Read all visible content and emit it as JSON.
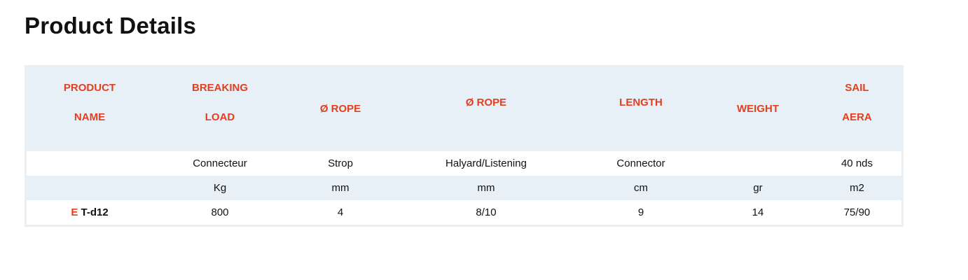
{
  "page_title": "Product Details",
  "table": {
    "headers": [
      [
        "PRODUCT",
        "NAME"
      ],
      [
        "BREAKING",
        "LOAD"
      ],
      [
        "Ø ROPE"
      ],
      [
        "Ø ROPE"
      ],
      [
        "LENGTH"
      ],
      [
        "WEIGHT"
      ],
      [
        "SAIL",
        "AERA"
      ]
    ],
    "rows": [
      [
        "",
        "Connecteur",
        "Strop",
        "Halyard/Listening",
        "Connector",
        "",
        "40 nds"
      ],
      [
        "",
        "Kg",
        "mm",
        "mm",
        "cm",
        "gr",
        "m2"
      ],
      [
        "E T-d12",
        "800",
        "4",
        "8/10",
        "9",
        "14",
        "75/90"
      ]
    ],
    "product": {
      "prefix": "E",
      "name": "T-d12"
    }
  },
  "colors": {
    "accent": "#e0401f",
    "header_bg": "#e8f0f7"
  }
}
